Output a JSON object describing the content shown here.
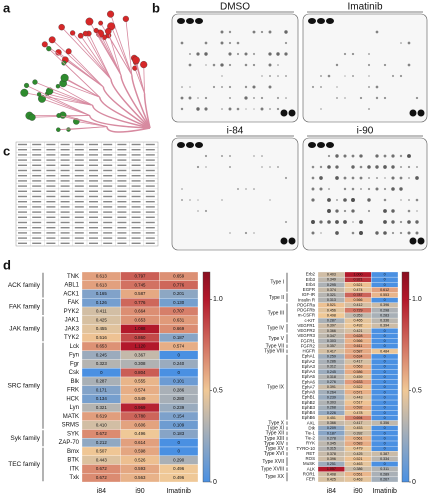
{
  "panels": {
    "a": "a",
    "b": "b",
    "c": "c",
    "d": "d"
  },
  "blots": [
    "DMSO",
    "Imatinib",
    "i-84",
    "i-90"
  ],
  "heatmap_left": {
    "columns": [
      "i84",
      "i90",
      "Imatinib"
    ],
    "colorbar_lim": [
      0,
      1.15
    ],
    "colorbar_ticks": [
      0,
      0.5,
      {
        "value": 1,
        "label": "1.0"
      }
    ],
    "groups": [
      {
        "name": "ACK family",
        "rows": [
          {
            "name": "TNK",
            "values": [
              0.613,
              0.797,
              0.659
            ]
          },
          {
            "name": "ABL1",
            "values": [
              0.613,
              0.745,
              0.776
            ]
          },
          {
            "name": "ACK1",
            "values": [
              0.165,
              0.587,
              0.201
            ]
          }
        ]
      },
      {
        "name": "FAK family",
        "rows": [
          {
            "name": "FAK",
            "values": [
              0.126,
              0.776,
              0.13
            ],
            "value_labels": [
              "0.126",
              "0.776",
              "0.130"
            ]
          },
          {
            "name": "PYK2",
            "values": [
              0.411,
              0.664,
              0.707
            ]
          }
        ]
      },
      {
        "name": "JAK family",
        "rows": [
          {
            "name": "JAK1",
            "values": [
              0.425,
              0.653,
              0.631
            ]
          },
          {
            "name": "JAK3",
            "values": [
              0.455,
              1.088,
              0.669
            ]
          },
          {
            "name": "TYK2",
            "values": [
              0.516,
              0.86,
              0.187
            ],
            "value_labels": [
              "0.516",
              "0.860",
              "0.187"
            ]
          }
        ]
      },
      {
        "name": "SRC family",
        "rows": [
          {
            "name": "Lck",
            "values": [
              0.653,
              1.12,
              0.574
            ],
            "value_labels": [
              "0.653",
              "1.120",
              "0.574"
            ]
          },
          {
            "name": "Fyn",
            "values": [
              0.245,
              0.367,
              0
            ]
          },
          {
            "name": "Fgr",
            "values": [
              0.323,
              0.308,
              0.24
            ],
            "value_labels": [
              "0.323",
              "0.308",
              "0.240"
            ]
          },
          {
            "name": "Csk",
            "values": [
              0,
              0.804,
              0
            ]
          },
          {
            "name": "Blk",
            "values": [
              0.287,
              0.555,
              0.101
            ]
          },
          {
            "name": "FRK",
            "values": [
              0.171,
              0.574,
              0.286
            ]
          },
          {
            "name": "HCK",
            "values": [
              0.134,
              0.549,
              0.28
            ],
            "value_labels": [
              "0.134",
              "0.549",
              "0.280"
            ]
          },
          {
            "name": "Lyn",
            "values": [
              0.321,
              0.969,
              0.239
            ]
          },
          {
            "name": "MATK",
            "values": [
              0.619,
              0.78,
              0.154
            ],
            "value_labels": [
              "0.619",
              "0.780",
              "0.154"
            ]
          },
          {
            "name": "SRMS",
            "values": [
              0.41,
              0.606,
              0.109
            ],
            "value_labels": [
              "0.410",
              "0.606",
              "0.109"
            ]
          }
        ]
      },
      {
        "name": "Syk family",
        "rows": [
          {
            "name": "SYK",
            "values": [
              0.672,
              0.496,
              0.183
            ]
          },
          {
            "name": "ZAP-70",
            "values": [
              0.212,
              0.614,
              0
            ]
          }
        ]
      },
      {
        "name": "TEC family",
        "rows": [
          {
            "name": "Bmx",
            "values": [
              0.507,
              0.598,
              0
            ]
          },
          {
            "name": "BTK",
            "values": [
              0.443,
              0.526,
              0.29
            ],
            "value_labels": [
              "0.443",
              "0.526",
              "0.290"
            ]
          },
          {
            "name": "ITK",
            "values": [
              0.672,
              0.593,
              0.496
            ]
          },
          {
            "name": "Txk",
            "values": [
              0.672,
              0.563,
              0.496
            ]
          }
        ]
      }
    ]
  },
  "heatmap_right": {
    "columns": [
      "i84",
      "i90",
      "Imatinib"
    ],
    "colorbar_lim": [
      0,
      1.15
    ],
    "colorbar_ticks": [
      0,
      0.5,
      {
        "value": 1,
        "label": "1.0"
      }
    ],
    "groups": [
      {
        "name": "Type I",
        "rows": [
          {
            "name": "Erb2",
            "values": [
              0.403,
              1,
              0
            ],
            "value_labels": [
              "0.403",
              "1.000",
              "0"
            ]
          },
          {
            "name": "Erb3",
            "values": [
              0.349,
              0.921,
              0
            ]
          },
          {
            "name": "Erb4",
            "values": [
              0.295,
              0.521,
              0
            ]
          },
          {
            "name": "EGFR",
            "values": [
              0.374,
              0.474,
              0.612
            ]
          }
        ]
      },
      {
        "name": "Type II",
        "rows": [
          {
            "name": "IGF-IR",
            "values": [
              0.321,
              0.787,
              0.553
            ]
          },
          {
            "name": "Insulin R",
            "values": [
              0.313,
              0.566,
              0
            ]
          }
        ]
      },
      {
        "name": "Type III",
        "rows": [
          {
            "name": "PDGFRa",
            "values": [
              0.521,
              0.412,
              0.396
            ]
          },
          {
            "name": "PDGFRb",
            "values": [
              0.456,
              0.729,
              0.298
            ]
          },
          {
            "name": "m-CSFR",
            "values": [
              0.498,
              0.353,
              0.283
            ]
          },
          {
            "name": "c-KIT",
            "values": [
              0.287,
              0.465,
              0.336
            ]
          }
        ]
      },
      {
        "name": "Type IV",
        "rows": [
          {
            "name": "VEGFR1",
            "values": [
              0.397,
              0.492,
              0.394
            ]
          },
          {
            "name": "VEGFR2",
            "values": [
              0.366,
              0.421,
              0
            ]
          }
        ]
      },
      {
        "name": "Type V",
        "rows": [
          {
            "name": "VEGFR3",
            "values": [
              0.347,
              0.628,
              0
            ]
          },
          {
            "name": "FGFR1",
            "values": [
              0.303,
              0.566,
              0
            ]
          }
        ]
      },
      {
        "name": "Type VII",
        "rows": [
          {
            "name": "FGFR2",
            "values": [
              0.357,
              0.611,
              0
            ]
          }
        ]
      },
      {
        "name": "Type VIII",
        "rows": [
          {
            "name": "HGFR",
            "values": [
              0.417,
              0.587,
              0.484
            ]
          }
        ]
      },
      {
        "name": "Type IX",
        "rows": [
          {
            "name": "EphA1",
            "values": [
              0.259,
              0.634,
              0
            ]
          },
          {
            "name": "EphA2",
            "values": [
              0.286,
              0.417,
              0
            ]
          },
          {
            "name": "EphA3",
            "values": [
              0.312,
              0.563,
              0
            ]
          },
          {
            "name": "EphA4",
            "values": [
              0.245,
              0.586,
              0
            ]
          },
          {
            "name": "EphA5",
            "values": [
              0.318,
              0.459,
              0
            ]
          },
          {
            "name": "EphA6",
            "values": [
              0.276,
              0.633,
              0
            ]
          },
          {
            "name": "EphA7",
            "values": [
              0.391,
              0.522,
              0
            ]
          },
          {
            "name": "EphA8",
            "values": [
              0.264,
              0.571,
              0
            ]
          },
          {
            "name": "EphB1",
            "values": [
              0.239,
              0.443,
              0
            ]
          },
          {
            "name": "EphB2",
            "values": [
              0.303,
              0.517,
              0
            ]
          },
          {
            "name": "EphB3",
            "values": [
              0.268,
              0.592,
              0
            ]
          },
          {
            "name": "EphB4",
            "values": [
              0.226,
              0.478,
              0
            ]
          },
          {
            "name": "EphB6",
            "values": [
              0.451,
              0.694,
              0
            ]
          }
        ]
      },
      {
        "name": "Type X",
        "rows": [
          {
            "name": "AXL",
            "values": [
              0.366,
              0.417,
              0.356
            ]
          }
        ]
      },
      {
        "name": "Type XI",
        "rows": [
          {
            "name": "Dtk",
            "values": [
              0.209,
              0.453,
              0
            ]
          }
        ]
      },
      {
        "name": "Type XII",
        "rows": [
          {
            "name": "Tie-1",
            "values": [
              0.187,
              0.392,
              0
            ]
          }
        ]
      },
      {
        "name": "Type XIII",
        "rows": [
          {
            "name": "Tie-2",
            "values": [
              0.278,
              0.561,
              0
            ]
          }
        ]
      },
      {
        "name": "Type XIV",
        "rows": [
          {
            "name": "RYK",
            "values": [
              0.345,
              0.583,
              0
            ]
          }
        ]
      },
      {
        "name": "Type XV",
        "rows": [
          {
            "name": "TYRO-10",
            "values": [
              0.315,
              0.479,
              0
            ]
          }
        ]
      },
      {
        "name": "Type XVI",
        "rows": [
          {
            "name": "RET",
            "values": [
              0.378,
              0.425,
              0.387
            ]
          }
        ]
      },
      {
        "name": "Type XVII",
        "rows": [
          {
            "name": "ROS",
            "values": [
              0.396,
              0.521,
              0.334
            ]
          },
          {
            "name": "MuSK",
            "values": [
              0.251,
              0.463,
              0
            ]
          }
        ]
      },
      {
        "name": "Type XVIII",
        "rows": [
          {
            "name": "ALK",
            "values": [
              1.057,
              0.386,
              0.311
            ]
          }
        ]
      },
      {
        "name": "Type XX",
        "rows": [
          {
            "name": "ROR1",
            "values": [
              0.408,
              0.551,
              0.289
            ]
          },
          {
            "name": "FER",
            "values": [
              0.425,
              0.463,
              0.267
            ]
          }
        ]
      }
    ]
  }
}
